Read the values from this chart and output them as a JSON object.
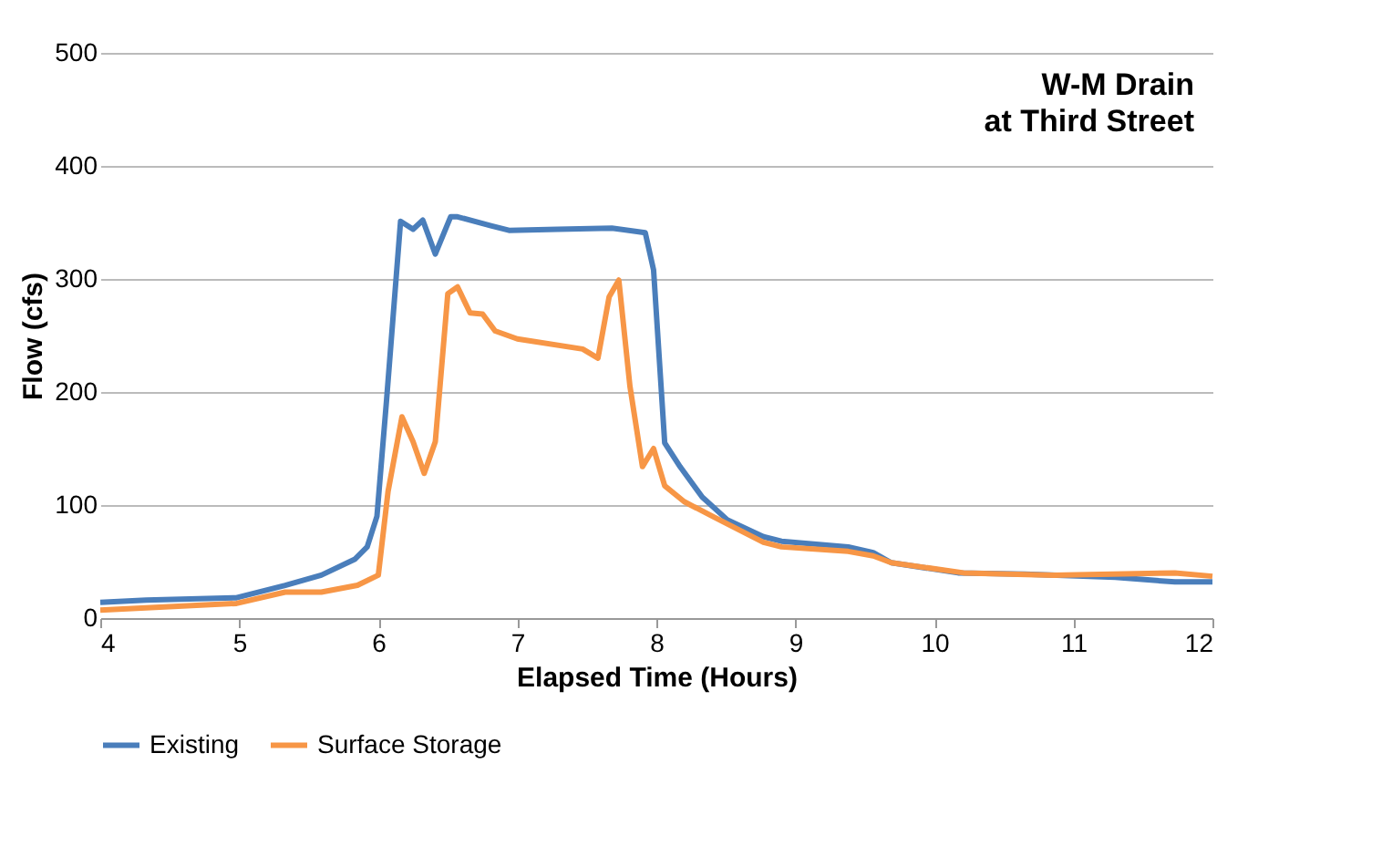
{
  "chart_data": {
    "type": "line",
    "xlabel": "Elapsed Time (Hours)",
    "ylabel": "Flow (cfs)",
    "annotations": [
      "W-M Drain",
      "at Third Street"
    ],
    "xlim": [
      4,
      12
    ],
    "xticks": [
      4,
      5,
      6,
      7,
      8,
      9,
      10,
      11,
      12
    ],
    "ylim": [
      0,
      500
    ],
    "yticks": [
      0,
      100,
      200,
      300,
      400,
      500
    ],
    "grid": "y",
    "legend": "bottom",
    "marker": "none",
    "line_style": "solid",
    "series": [
      {
        "name": "Existing",
        "color": "#4a7ebb",
        "x": [
          4.0,
          4.33,
          4.98,
          5.33,
          5.59,
          5.83,
          5.92,
          5.99,
          6.06,
          6.16,
          6.25,
          6.32,
          6.41,
          6.52,
          6.57,
          6.81,
          6.94,
          7.29,
          7.68,
          7.92,
          7.98,
          8.06,
          8.17,
          8.33,
          8.51,
          8.77,
          8.9,
          9.38,
          9.56,
          9.69,
          10.17,
          10.65,
          11.3,
          11.73,
          12.0
        ],
        "values": [
          14,
          16,
          18,
          29,
          38,
          52,
          63,
          90,
          194,
          351,
          344,
          352,
          322,
          355,
          355,
          347,
          343,
          344,
          345,
          341,
          308,
          155,
          134,
          107,
          87,
          72,
          68,
          63,
          58,
          49,
          40,
          39,
          36,
          32,
          32
        ]
      },
      {
        "name": "Surface Storage",
        "color": "#f79646",
        "x": [
          4.0,
          4.98,
          5.33,
          5.59,
          5.85,
          6.0,
          6.07,
          6.17,
          6.25,
          6.33,
          6.41,
          6.5,
          6.57,
          6.66,
          6.75,
          6.84,
          7.0,
          7.47,
          7.58,
          7.66,
          7.73,
          7.81,
          7.9,
          7.98,
          8.06,
          8.2,
          8.42,
          8.77,
          8.9,
          9.38,
          9.56,
          9.69,
          10.21,
          10.86,
          11.73,
          12.0
        ],
        "values": [
          7,
          13,
          23,
          23,
          29,
          38,
          112,
          178,
          156,
          128,
          156,
          287,
          293,
          270,
          269,
          254,
          247,
          238,
          230,
          284,
          299,
          205,
          134,
          150,
          117,
          103,
          89,
          67,
          63,
          59,
          55,
          49,
          40,
          38,
          40,
          37
        ]
      }
    ]
  }
}
